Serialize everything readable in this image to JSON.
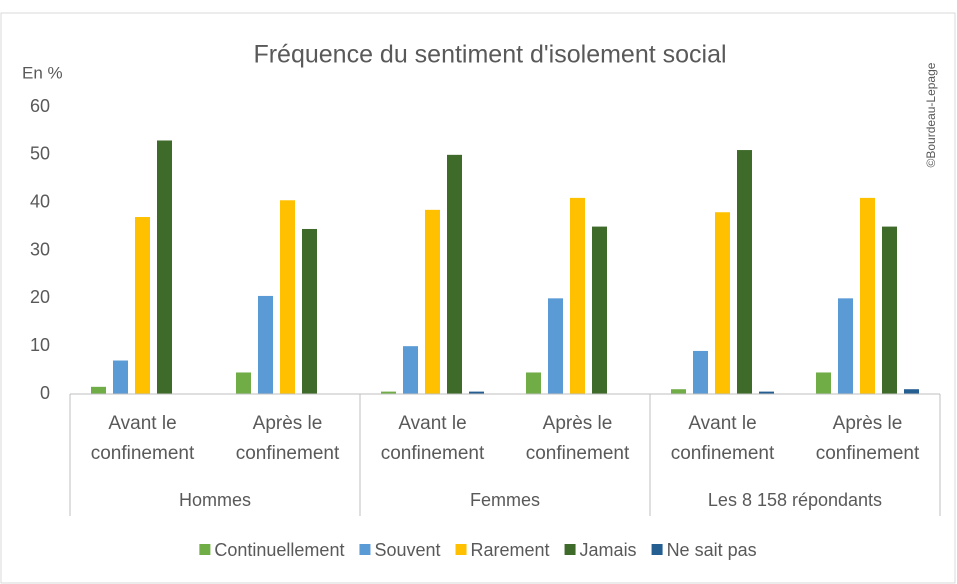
{
  "chart_data": {
    "type": "bar",
    "title": "Fréquence du sentiment d'isolement social",
    "y_axis_label": "En %",
    "annotation": "©Bourdeau-Lepage",
    "categories": [
      "Avant le confinement",
      "Après le confinement",
      "Avant le confinement",
      "Après le confinement",
      "Avant le confinement",
      "Après le confinement"
    ],
    "groups": [
      "Hommes",
      "Femmes",
      "Les 8 158 répondants"
    ],
    "series": [
      {
        "name": "Continuellement",
        "color": "#70ad47",
        "values": [
          1.5,
          4.5,
          0.5,
          4.5,
          1,
          4.5
        ]
      },
      {
        "name": "Souvent",
        "color": "#5b9bd5",
        "values": [
          7,
          20.5,
          10,
          20,
          9,
          20
        ]
      },
      {
        "name": "Rarement",
        "color": "#ffc000",
        "values": [
          37,
          40.5,
          38.5,
          41,
          38,
          41
        ]
      },
      {
        "name": "Jamais",
        "color": "#3f6b2a",
        "values": [
          53,
          34.5,
          50,
          35,
          51,
          35
        ]
      },
      {
        "name": "Ne sait pas",
        "color": "#255e91",
        "values": [
          0,
          0,
          0.5,
          0,
          0.5,
          1
        ]
      }
    ],
    "ylim": [
      0,
      60
    ],
    "yticks": [
      0,
      10,
      20,
      30,
      40,
      50,
      60
    ],
    "grid": false,
    "legend": "bottom"
  }
}
